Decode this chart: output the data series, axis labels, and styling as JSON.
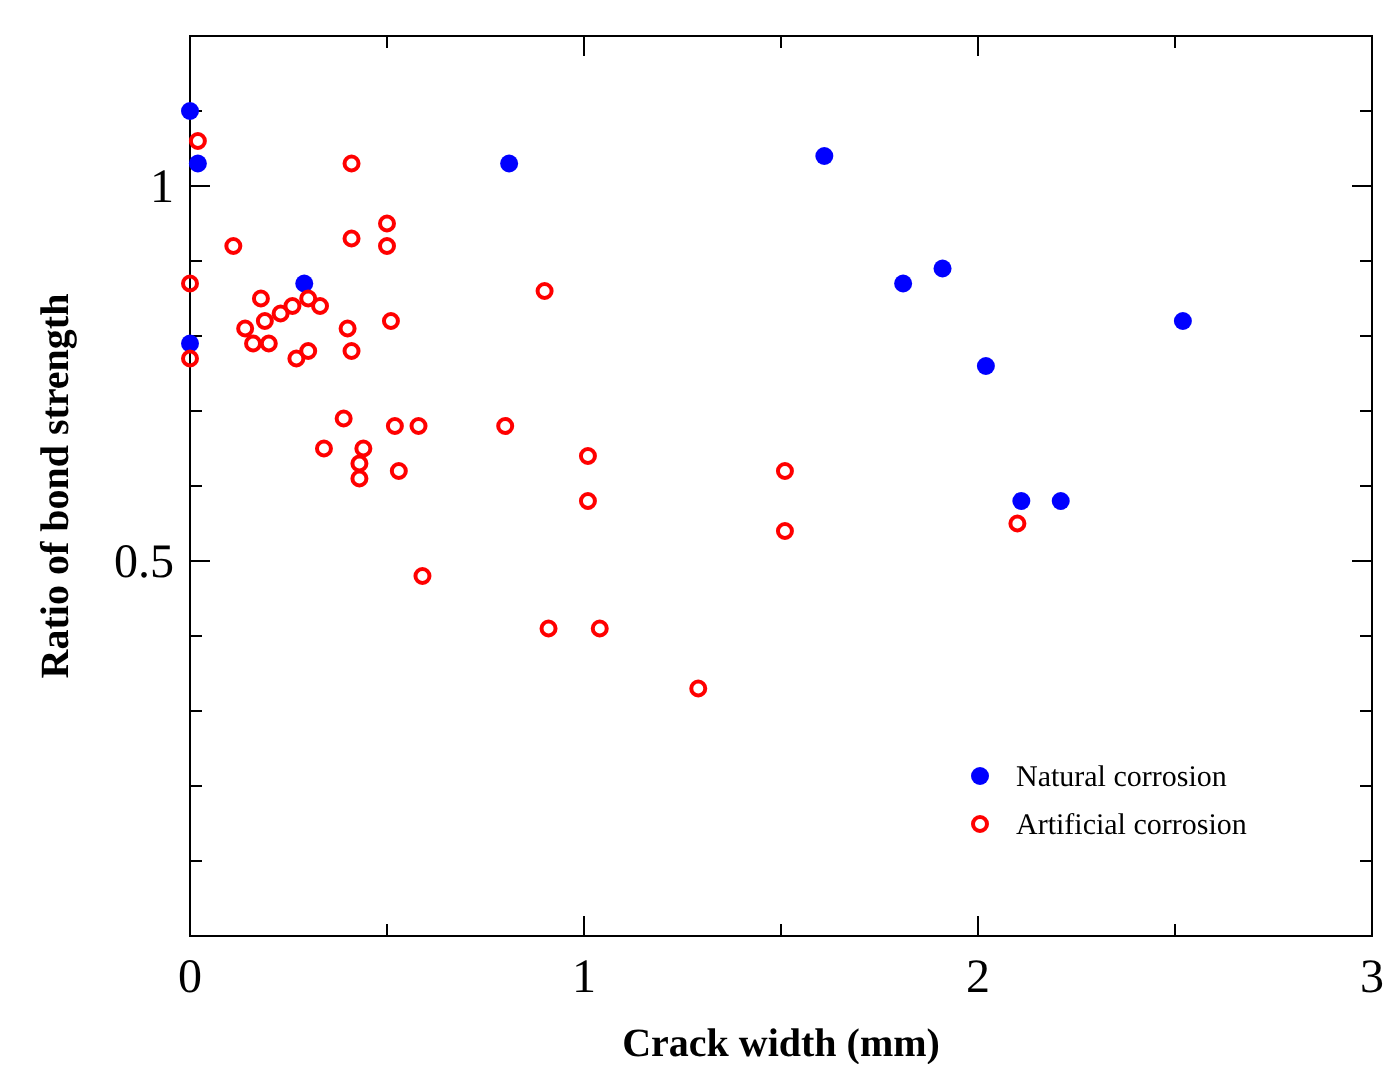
{
  "chart_data": {
    "type": "scatter",
    "xlabel": "Crack width (mm)",
    "ylabel": "Ratio of bond strength",
    "xlim": [
      0,
      3
    ],
    "ylim": [
      0,
      1.2
    ],
    "xticks": [
      0,
      {
        "value": 0.5,
        "label": null
      },
      1,
      {
        "value": 1.5,
        "label": null
      },
      2,
      {
        "value": 2.5,
        "label": null
      },
      3
    ],
    "yticks": [
      {
        "value": 0.1,
        "label": null
      },
      {
        "value": 0.2,
        "label": null
      },
      {
        "value": 0.3,
        "label": null
      },
      {
        "value": 0.4,
        "label": null
      },
      0.5,
      {
        "value": 0.6,
        "label": null
      },
      {
        "value": 0.7,
        "label": null
      },
      {
        "value": 0.8,
        "label": null
      },
      {
        "value": 0.9,
        "label": null
      },
      1,
      {
        "value": 1.1,
        "label": null
      }
    ],
    "legend": "bottom right",
    "grid": false,
    "series": [
      {
        "name": "Natural corrosion",
        "color": "#0000ff",
        "marker": "circle",
        "x": [
          0.0,
          0.02,
          0.0,
          0.29,
          0.81,
          1.61,
          1.81,
          1.91,
          2.02,
          2.11,
          2.21,
          2.52
        ],
        "values": [
          1.1,
          1.03,
          0.79,
          0.87,
          1.03,
          1.04,
          0.87,
          0.89,
          0.76,
          0.58,
          0.58,
          0.82
        ]
      },
      {
        "name": "Artificial corrosion",
        "color": "#ff0000",
        "marker": "open-circle",
        "x": [
          0.02,
          0.0,
          0.0,
          0.11,
          0.14,
          0.16,
          0.18,
          0.19,
          0.2,
          0.23,
          0.26,
          0.27,
          0.3,
          0.3,
          0.33,
          0.34,
          0.39,
          0.4,
          0.41,
          0.41,
          0.41,
          0.43,
          0.43,
          0.44,
          0.5,
          0.5,
          0.51,
          0.52,
          0.53,
          0.58,
          0.59,
          0.8,
          0.9,
          0.91,
          1.01,
          1.01,
          1.04,
          1.29,
          1.51,
          1.51,
          2.1
        ],
        "values": [
          1.06,
          0.87,
          0.77,
          0.92,
          0.81,
          0.79,
          0.85,
          0.82,
          0.79,
          0.83,
          0.84,
          0.77,
          0.78,
          0.85,
          0.84,
          0.65,
          0.69,
          0.81,
          1.03,
          0.93,
          0.78,
          0.63,
          0.61,
          0.65,
          0.95,
          0.92,
          0.82,
          0.68,
          0.62,
          0.68,
          0.48,
          0.68,
          0.86,
          0.41,
          0.64,
          0.58,
          0.41,
          0.33,
          0.62,
          0.54,
          0.55
        ]
      }
    ]
  }
}
